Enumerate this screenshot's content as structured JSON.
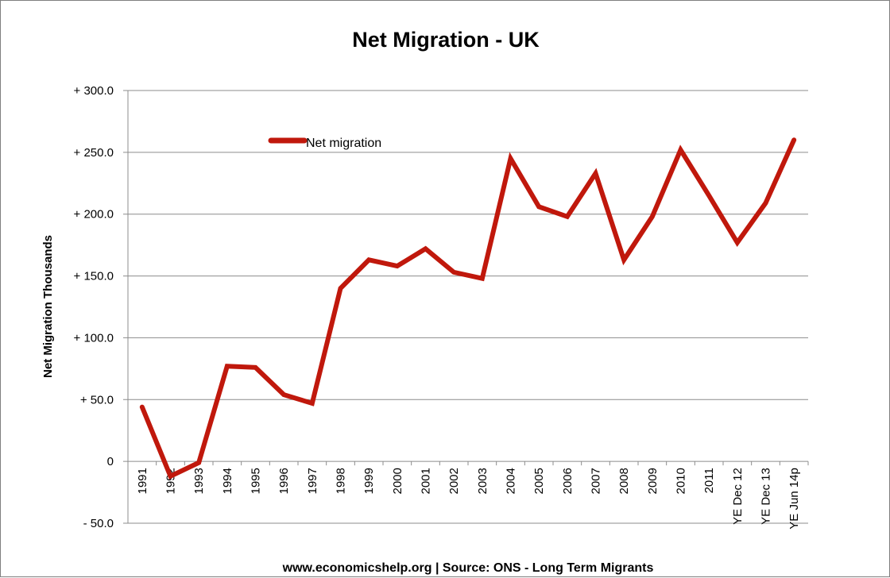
{
  "chart_data": {
    "type": "line",
    "title": "Net Migration - UK",
    "xlabel": "",
    "ylabel": "Net Migration Thousands",
    "ylim": [
      -50,
      300
    ],
    "yticks": [
      {
        "value": 300,
        "label": "+  300.0"
      },
      {
        "value": 250,
        "label": "+  250.0"
      },
      {
        "value": 200,
        "label": "+  200.0"
      },
      {
        "value": 150,
        "label": "+  150.0"
      },
      {
        "value": 100,
        "label": "+  100.0"
      },
      {
        "value": 50,
        "label": "+    50.0"
      },
      {
        "value": 0,
        "label": "0"
      },
      {
        "value": -50,
        "label": "-   50.0"
      }
    ],
    "categories": [
      "1991",
      "1992",
      "1993",
      "1994",
      "1995",
      "1996",
      "1997",
      "1998",
      "1999",
      "2000",
      "2001",
      "2002",
      "2003",
      "2004",
      "2005",
      "2006",
      "2007",
      "2008",
      "2009",
      "2010",
      "2011",
      "YE Dec 12",
      "YE Dec 13",
      "YE Jun 14p"
    ],
    "series": [
      {
        "name": "Net migration",
        "color": "#c0180c",
        "values": [
          44,
          -12,
          -1,
          77,
          76,
          54,
          47,
          140,
          163,
          158,
          172,
          153,
          148,
          245,
          206,
          198,
          233,
          163,
          198,
          252,
          215,
          177,
          209,
          260
        ]
      }
    ],
    "grid": true,
    "legend_position": "top-left"
  },
  "footer": "www.economicshelp.org | Source: ONS - Long Term Migrants"
}
